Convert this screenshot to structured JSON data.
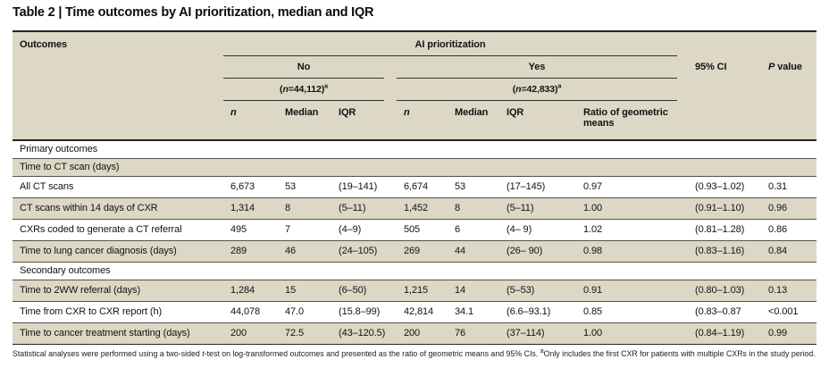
{
  "title": "Table 2 | Time outcomes by AI prioritization, median and IQR",
  "colors": {
    "header_and_stripe_background": "#dcd8c5",
    "heavy_rule": "#26251f",
    "light_rule": "#55524a",
    "text": "#121212"
  },
  "table": {
    "header": {
      "outcomes": "Outcomes",
      "ai": "AI prioritization",
      "no_label": "No",
      "yes_label": "Yes",
      "no_n": {
        "pre": "(",
        "n": "n",
        "post": "=44,112)",
        "sup": "a"
      },
      "yes_n": {
        "pre": "(",
        "n": "n",
        "post": "=42,833)",
        "sup": "a"
      },
      "ci": "95% CI",
      "p_italic": "P",
      "p_rest": " value",
      "col_n": "n",
      "col_median": "Median",
      "col_iqr": "IQR",
      "col_ratio": "Ratio of geometric means"
    },
    "rows": [
      {
        "type": "section",
        "label": "Primary outcomes"
      },
      {
        "type": "section",
        "label": "Time to CT scan (days)"
      },
      {
        "type": "data",
        "label": "All CT scans",
        "cells": [
          "6,673",
          "53",
          "(19–141)",
          "6,674",
          "53",
          "(17–145)",
          "0.97",
          "(0.93–1.02)",
          "0.31"
        ]
      },
      {
        "type": "data",
        "label": "CT scans within 14 days of CXR",
        "cells": [
          "1,314",
          "8",
          "(5–11)",
          "1,452",
          "8",
          "(5–11)",
          "1.00",
          "(0.91–1.10)",
          "0.96"
        ]
      },
      {
        "type": "data",
        "label": "CXRs coded to generate a CT referral",
        "cells": [
          "495",
          "7",
          "(4–9)",
          "505",
          "6",
          "(4– 9)",
          "1.02",
          "(0.81–1.28)",
          "0.86"
        ]
      },
      {
        "type": "data",
        "label": "Time to lung cancer diagnosis (days)",
        "cells": [
          "289",
          "46",
          "(24–105)",
          "269",
          "44",
          "(26– 90)",
          "0.98",
          "(0.83–1.16)",
          "0.84"
        ]
      },
      {
        "type": "section",
        "label": "Secondary outcomes"
      },
      {
        "type": "data",
        "label": "Time to 2WW referral (days)",
        "cells": [
          "1,284",
          "15",
          "(6–50)",
          "1,215",
          "14",
          "(5–53)",
          "0.91",
          "(0.80–1.03)",
          "0.13"
        ]
      },
      {
        "type": "data",
        "label": "Time from CXR to CXR report (h)",
        "cells": [
          "44,078",
          "47.0",
          "(15.8–99)",
          "42,814",
          "34.1",
          "(6.6–93.1)",
          "0.85",
          "(0.83–0.87",
          "<0.001"
        ]
      },
      {
        "type": "data",
        "label": "Time to cancer treatment starting (days)",
        "cells": [
          "200",
          "72.5",
          "(43–120.5)",
          "200",
          "76",
          "(37–114)",
          "1.00",
          "(0.84–1.19)",
          "0.99"
        ]
      }
    ]
  },
  "footnote": {
    "part1": "Statistical analyses were performed using a two-sided ",
    "italic1": "t",
    "part2": "-test on log-transformed outcomes and presented as the ratio of geometric means and 95% CIs. ",
    "sup": "a",
    "part3": "Only includes the first CXR for patients with multiple CXRs in the study period."
  }
}
